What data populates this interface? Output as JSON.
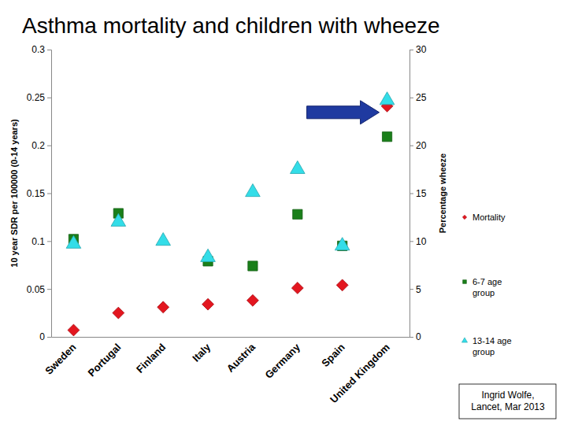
{
  "chart_data": {
    "type": "scatter",
    "title": "Asthma mortality and children with wheeze",
    "ylabel": "10 year SDR per 100000 (0-14 years)",
    "y2label": "Percentage wheeze",
    "categories": [
      "Sweden",
      "Portugal",
      "Finland",
      "Italy",
      "Austria",
      "Germany",
      "Spain",
      "United Kingdom"
    ],
    "series": [
      {
        "name": "Mortality",
        "color": "#e3161f",
        "marker": "diamond",
        "axis": "y",
        "values": [
          0.007,
          0.025,
          0.031,
          0.034,
          0.038,
          0.051,
          0.054,
          0.241
        ]
      },
      {
        "name": "6-7 age group",
        "color": "#1a7f1a",
        "marker": "square",
        "axis": "y2",
        "values": [
          10.2,
          12.9,
          null,
          7.9,
          7.4,
          12.8,
          9.5,
          20.9
        ]
      },
      {
        "name": "13-14 age group",
        "color": "#33dde8",
        "marker": "triangle",
        "axis": "y2",
        "values": [
          9.7,
          12.0,
          10.0,
          8.3,
          15.1,
          17.5,
          9.5,
          24.7
        ]
      }
    ],
    "ylim": [
      0,
      0.3
    ],
    "yticks": [
      0,
      0.05,
      0.1,
      0.15,
      0.2,
      0.25,
      0.3
    ],
    "y2lim": [
      0,
      30
    ],
    "y2ticks": [
      0,
      5,
      10,
      15,
      20,
      25,
      30
    ],
    "legend": "right",
    "source": "Ingrid Wolfe, Lancet, Mar 2013"
  }
}
